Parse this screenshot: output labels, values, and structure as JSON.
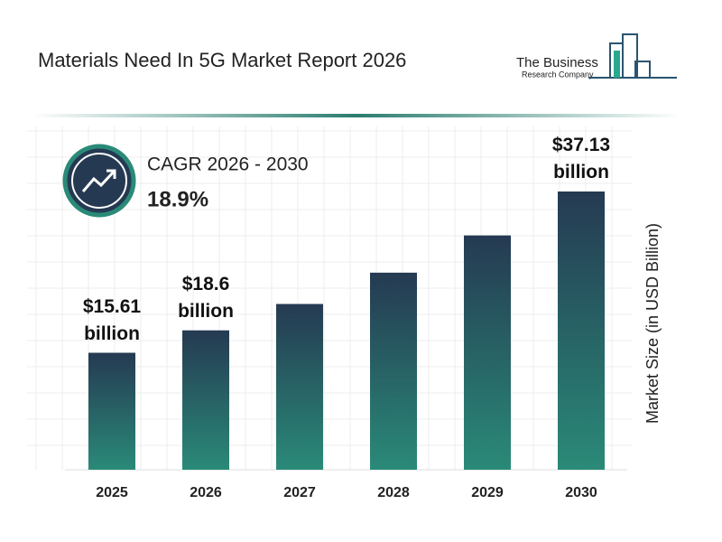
{
  "logo": {
    "line1": "The Business",
    "line2": "Research Company"
  },
  "chart_data": {
    "type": "bar",
    "title": "Materials Need In 5G Market Report 2026",
    "cagr_label": "CAGR 2026 - 2030",
    "cagr_value": "18.9%",
    "y_label": "Market Size (in USD Billion)",
    "categories": [
      "2025",
      "2026",
      "2027",
      "2028",
      "2029",
      "2030"
    ],
    "values": [
      15.61,
      18.6,
      22.12,
      26.3,
      31.27,
      37.13
    ],
    "value_labels": [
      "$15.61 billion",
      "$18.6 billion",
      null,
      null,
      null,
      "$37.13 billion"
    ],
    "color_top": "#253a52",
    "color_bottom": "#2a8a78"
  }
}
